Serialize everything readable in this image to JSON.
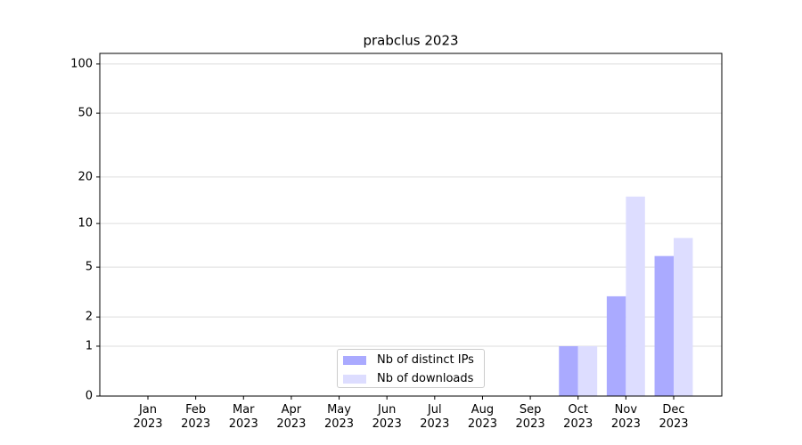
{
  "chart_data": {
    "type": "bar",
    "title": "prabclus 2023",
    "categories": [
      "Jan 2023",
      "Feb 2023",
      "Mar 2023",
      "Apr 2023",
      "May 2023",
      "Jun 2023",
      "Jul 2023",
      "Aug 2023",
      "Sep 2023",
      "Oct 2023",
      "Nov 2023",
      "Dec 2023"
    ],
    "series": [
      {
        "name": "Nb of distinct IPs",
        "color": "#aaaaff",
        "values": [
          0,
          0,
          0,
          0,
          0,
          0,
          0,
          0,
          0,
          1,
          3,
          6
        ]
      },
      {
        "name": "Nb of downloads",
        "color": "#ddddff",
        "values": [
          0,
          0,
          0,
          0,
          0,
          0,
          0,
          0,
          0,
          1,
          15,
          8
        ]
      }
    ],
    "yscale": "log1p",
    "ylim": [
      0,
      116
    ],
    "yticks": [
      0,
      1,
      2,
      5,
      10,
      20,
      50,
      100
    ],
    "grid": true
  }
}
